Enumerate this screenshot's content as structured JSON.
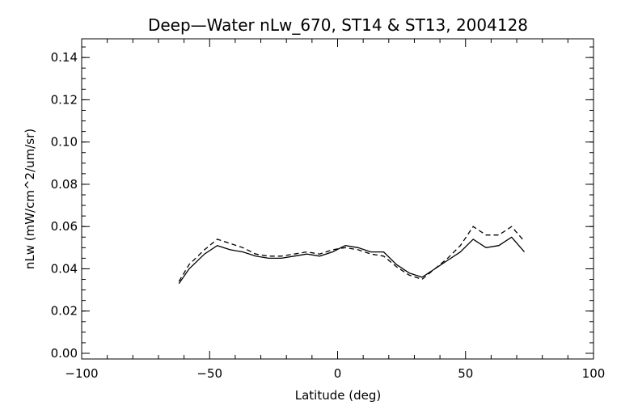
{
  "chart_data": {
    "type": "line",
    "title": "Deep—Water nLw_670, ST14 & ST13, 2004128",
    "xlabel": "Latitude (deg)",
    "ylabel": "nLw (mW/cm^2/um/sr)",
    "xlim": [
      -100,
      100
    ],
    "ylim": [
      0.0,
      0.15
    ],
    "xticks": [
      -100,
      -50,
      0,
      50,
      100
    ],
    "xtick_labels": [
      "−100",
      "−50",
      "0",
      "50",
      "100"
    ],
    "yticks": [
      0.0,
      0.02,
      0.04,
      0.06,
      0.08,
      0.1,
      0.12,
      0.14
    ],
    "ytick_labels": [
      "0.00",
      "0.02",
      "0.04",
      "0.06",
      "0.08",
      "0.10",
      "0.12",
      "0.14"
    ],
    "grid": false,
    "legend": false,
    "series": [
      {
        "style": "solid",
        "color": "#000000",
        "x": [
          -62,
          -58,
          -52,
          -47,
          -42,
          -37,
          -32,
          -27,
          -22,
          -17,
          -12,
          -7,
          -2,
          3,
          8,
          13,
          18,
          23,
          28,
          33,
          38,
          43,
          48,
          53,
          58,
          63,
          68,
          73
        ],
        "y": [
          0.033,
          0.04,
          0.047,
          0.051,
          0.049,
          0.048,
          0.046,
          0.045,
          0.045,
          0.046,
          0.047,
          0.046,
          0.048,
          0.051,
          0.05,
          0.048,
          0.048,
          0.042,
          0.038,
          0.036,
          0.04,
          0.044,
          0.048,
          0.054,
          0.05,
          0.051,
          0.055,
          0.048
        ]
      },
      {
        "style": "dashed",
        "color": "#000000",
        "x": [
          -62,
          -58,
          -52,
          -47,
          -42,
          -37,
          -32,
          -27,
          -22,
          -17,
          -12,
          -7,
          -2,
          3,
          8,
          13,
          18,
          23,
          28,
          33,
          38,
          43,
          48,
          53,
          58,
          63,
          68,
          73
        ],
        "y": [
          0.034,
          0.042,
          0.049,
          0.054,
          0.052,
          0.05,
          0.047,
          0.046,
          0.046,
          0.047,
          0.048,
          0.047,
          0.049,
          0.05,
          0.049,
          0.047,
          0.046,
          0.041,
          0.037,
          0.035,
          0.04,
          0.045,
          0.051,
          0.06,
          0.056,
          0.056,
          0.06,
          0.053
        ]
      }
    ]
  }
}
